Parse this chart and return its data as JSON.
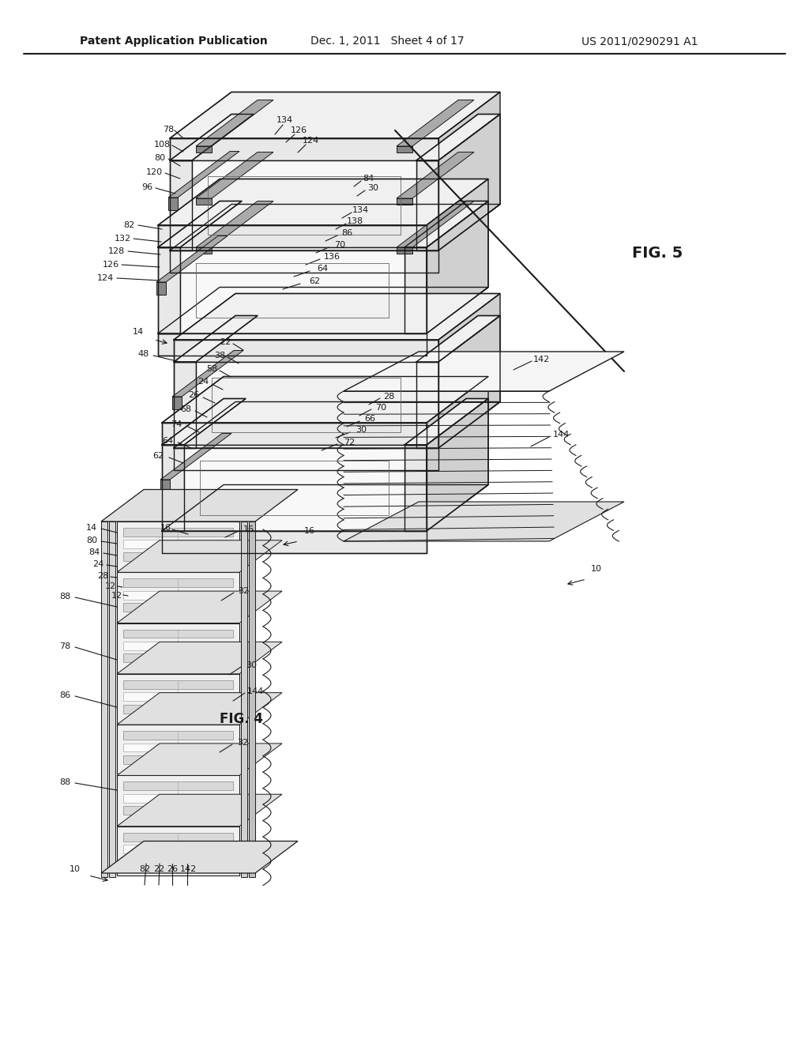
{
  "bg_color": "#ffffff",
  "lc": "#1a1a1a",
  "header_left": "Patent Application Publication",
  "header_mid": "Dec. 1, 2011   Sheet 4 of 17",
  "header_right": "US 2011/0290291 A1",
  "fig4_label": "FIG. 4",
  "fig5_label": "FIG. 5"
}
